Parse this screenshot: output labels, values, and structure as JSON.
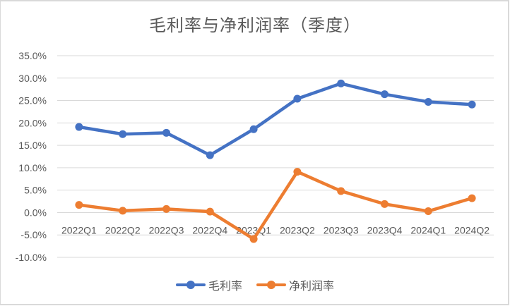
{
  "chart_data": {
    "type": "line",
    "title": "毛利率与净利润率（季度）",
    "xlabel": "",
    "ylabel": "",
    "categories": [
      "2022Q1",
      "2022Q2",
      "2022Q3",
      "2022Q4",
      "2023Q1",
      "2023Q2",
      "2023Q3",
      "2023Q4",
      "2024Q1",
      "2024Q2"
    ],
    "series": [
      {
        "name": "毛利率",
        "color": "#4472C4",
        "values": [
          19.1,
          17.5,
          17.8,
          12.8,
          18.6,
          25.4,
          28.8,
          26.4,
          24.7,
          24.1
        ]
      },
      {
        "name": "净利润率",
        "color": "#ED7D31",
        "values": [
          1.7,
          0.4,
          0.8,
          0.2,
          -5.9,
          9.1,
          4.8,
          1.9,
          0.3,
          3.2
        ]
      }
    ],
    "ylim": [
      -10,
      35
    ],
    "yticks": [
      "35.0%",
      "30.0%",
      "25.0%",
      "20.0%",
      "15.0%",
      "10.0%",
      "5.0%",
      "0.0%",
      "-5.0%",
      "-10.0%"
    ],
    "ytick_values": [
      35,
      30,
      25,
      20,
      15,
      10,
      5,
      0,
      -5,
      -10
    ],
    "grid": true,
    "legend_position": "bottom"
  },
  "legend": {
    "items": [
      {
        "label": "毛利率",
        "color": "#4472C4"
      },
      {
        "label": "净利润率",
        "color": "#ED7D31"
      }
    ]
  }
}
